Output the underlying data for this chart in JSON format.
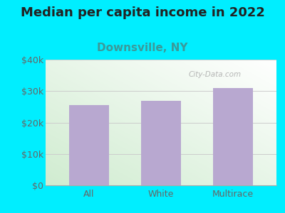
{
  "title": "Median per capita income in 2022",
  "subtitle": "Downsville, NY",
  "categories": [
    "All",
    "White",
    "Multirace"
  ],
  "values": [
    25500,
    27000,
    31000
  ],
  "bar_color": "#b8a8d0",
  "background_outer": "#00eeff",
  "title_fontsize": 13,
  "title_color": "#222222",
  "subtitle_fontsize": 11,
  "subtitle_color": "#3a9a9a",
  "tick_label_color": "#666666",
  "ylim": [
    0,
    40000
  ],
  "yticks": [
    0,
    10000,
    20000,
    30000,
    40000
  ],
  "ytick_labels": [
    "$0",
    "$10k",
    "$20k",
    "$30k",
    "$40k"
  ],
  "watermark": "City-Data.com",
  "grid_color": "#cccccc"
}
